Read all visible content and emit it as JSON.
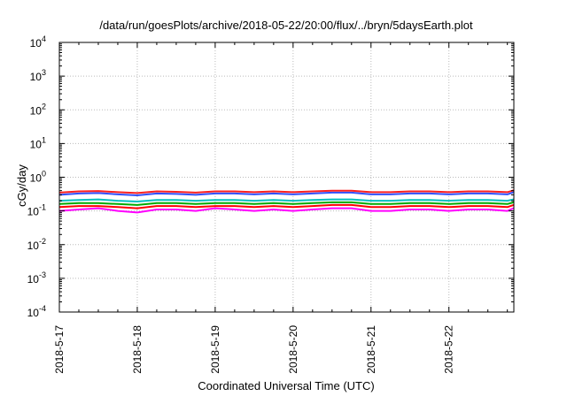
{
  "chart_data": {
    "type": "line",
    "title": "/data/run/goesPlots/archive/2018-05-22/20:00/flux/../bryn/5daysEarth.plot",
    "xlabel": "Coordinated Universal Time (UTC)",
    "ylabel": "cGy/day",
    "yscale": "log",
    "ylim": [
      0.0001,
      10000
    ],
    "xlim": [
      "2018-05-17 00:00",
      "2018-05-22 20:00"
    ],
    "y_ticks": [
      {
        "base": "10",
        "exp": "-4"
      },
      {
        "base": "10",
        "exp": "-3"
      },
      {
        "base": "10",
        "exp": "-2"
      },
      {
        "base": "10",
        "exp": "-1"
      },
      {
        "base": "10",
        "exp": "0"
      },
      {
        "base": "10",
        "exp": "1"
      },
      {
        "base": "10",
        "exp": "2"
      },
      {
        "base": "10",
        "exp": "3"
      },
      {
        "base": "10",
        "exp": "4"
      }
    ],
    "x_tick_labels": [
      "2018-5-17",
      "2018-5-18",
      "2018-5-19",
      "2018-5-20",
      "2018-5-21",
      "2018-5-22"
    ],
    "grid": true,
    "legend": "none",
    "x_days": [
      0,
      0.25,
      0.5,
      0.75,
      1.0,
      1.25,
      1.5,
      1.75,
      2.0,
      2.25,
      2.5,
      2.75,
      3.0,
      3.25,
      3.5,
      3.75,
      4.0,
      4.25,
      4.5,
      4.75,
      5.0,
      5.25,
      5.5,
      5.75,
      5.83
    ],
    "series": [
      {
        "color": "#ff00ff",
        "values": [
          0.1,
          0.11,
          0.12,
          0.1,
          0.09,
          0.11,
          0.11,
          0.1,
          0.12,
          0.11,
          0.1,
          0.11,
          0.1,
          0.11,
          0.12,
          0.12,
          0.1,
          0.1,
          0.11,
          0.11,
          0.1,
          0.11,
          0.11,
          0.1,
          0.12
        ]
      },
      {
        "color": "#ff0000",
        "values": [
          0.13,
          0.14,
          0.14,
          0.13,
          0.12,
          0.14,
          0.14,
          0.13,
          0.14,
          0.14,
          0.13,
          0.14,
          0.13,
          0.14,
          0.15,
          0.15,
          0.13,
          0.13,
          0.14,
          0.14,
          0.13,
          0.14,
          0.14,
          0.13,
          0.15
        ]
      },
      {
        "color": "#00aa00",
        "values": [
          0.16,
          0.17,
          0.17,
          0.16,
          0.15,
          0.17,
          0.17,
          0.16,
          0.17,
          0.17,
          0.16,
          0.17,
          0.16,
          0.17,
          0.18,
          0.18,
          0.16,
          0.16,
          0.17,
          0.17,
          0.16,
          0.17,
          0.17,
          0.16,
          0.18
        ]
      },
      {
        "color": "#00c0c0",
        "values": [
          0.2,
          0.21,
          0.22,
          0.2,
          0.19,
          0.21,
          0.21,
          0.2,
          0.21,
          0.21,
          0.2,
          0.21,
          0.2,
          0.21,
          0.22,
          0.22,
          0.2,
          0.2,
          0.21,
          0.21,
          0.2,
          0.21,
          0.21,
          0.2,
          0.22
        ]
      },
      {
        "color": "#3050ff",
        "values": [
          0.3,
          0.33,
          0.34,
          0.31,
          0.29,
          0.33,
          0.32,
          0.3,
          0.33,
          0.33,
          0.31,
          0.33,
          0.31,
          0.33,
          0.35,
          0.35,
          0.31,
          0.31,
          0.33,
          0.33,
          0.31,
          0.33,
          0.33,
          0.31,
          0.36
        ]
      },
      {
        "color": "#ff2020",
        "values": [
          0.35,
          0.38,
          0.39,
          0.36,
          0.34,
          0.38,
          0.37,
          0.35,
          0.38,
          0.38,
          0.36,
          0.38,
          0.36,
          0.38,
          0.4,
          0.4,
          0.36,
          0.36,
          0.38,
          0.38,
          0.36,
          0.38,
          0.38,
          0.36,
          0.41
        ]
      }
    ]
  }
}
